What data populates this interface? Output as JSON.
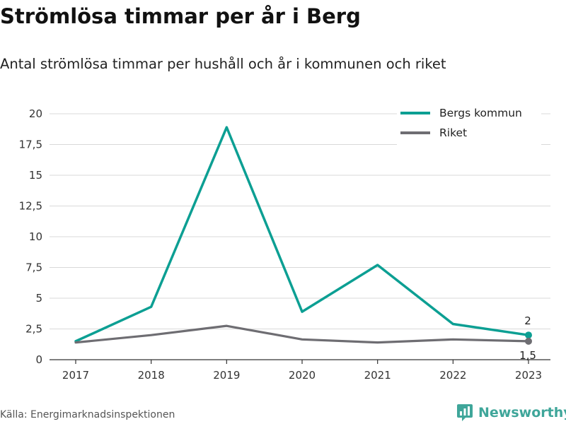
{
  "header": {
    "title": "Strömlösa timmar per år i Berg",
    "subtitle": "Antal strömlösa timmar per hushåll och år i kommunen och riket"
  },
  "footer": {
    "source": "Källa: Energimarknadsinspektionen",
    "brand": "Newsworthy",
    "brand_icon": "bar-chart-logo-icon",
    "brand_color": "#3fa69a"
  },
  "chart_data": {
    "type": "line",
    "title": "",
    "xlabel": "",
    "ylabel": "",
    "x": [
      "2017",
      "2018",
      "2019",
      "2020",
      "2021",
      "2022",
      "2023"
    ],
    "ylim": [
      0,
      20
    ],
    "yticks": [
      0,
      2.5,
      5,
      7.5,
      10,
      12.5,
      15,
      17.5,
      20
    ],
    "ytick_labels": [
      "0",
      "2,5",
      "5",
      "7,5",
      "10",
      "12,5",
      "15",
      "17,5",
      "20"
    ],
    "grid": "horizontal",
    "legend_position": "top-right",
    "series": [
      {
        "name": "Bergs kommun",
        "color": "#0c9f93",
        "values": [
          1.5,
          4.3,
          18.9,
          3.9,
          7.7,
          2.9,
          2.0
        ],
        "end_label": "2"
      },
      {
        "name": "Riket",
        "color": "#6e6d72",
        "values": [
          1.4,
          2.0,
          2.75,
          1.65,
          1.4,
          1.65,
          1.5
        ],
        "end_label": "1,5"
      }
    ]
  }
}
